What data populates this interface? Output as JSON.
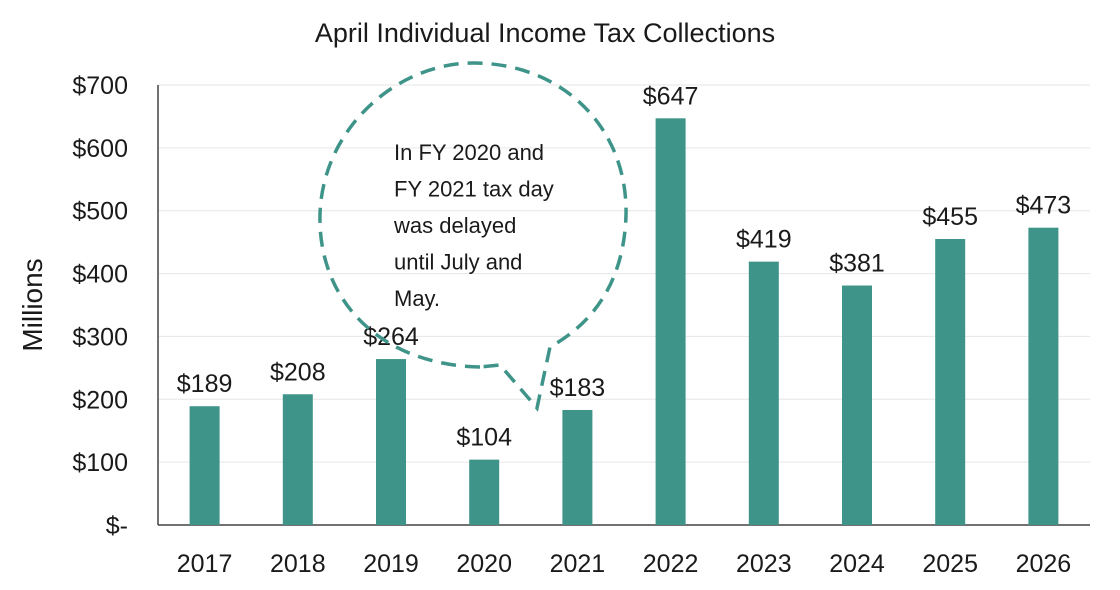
{
  "chart_data": {
    "type": "bar",
    "title": "April Individual Income Tax Collections",
    "ylabel": "Millions",
    "xlabel": "",
    "categories": [
      "2017",
      "2018",
      "2019",
      "2020",
      "2021",
      "2022",
      "2023",
      "2024",
      "2025",
      "2026"
    ],
    "values": [
      189,
      208,
      264,
      104,
      183,
      647,
      419,
      381,
      455,
      473
    ],
    "data_labels": [
      "$189",
      "$208",
      "$264",
      "$104",
      "$183",
      "$647",
      "$419",
      "$381",
      "$455",
      "$473"
    ],
    "ylim": [
      0,
      700
    ],
    "yticks": [
      0,
      100,
      200,
      300,
      400,
      500,
      600,
      700
    ],
    "ytick_labels": [
      "$-",
      "$100",
      "$200",
      "$300",
      "$400",
      "$500",
      "$600",
      "$700"
    ],
    "grid": true,
    "bar_color": "#3f9489",
    "annotation": {
      "lines": [
        "In FY 2020 and",
        "FY 2021 tax day",
        "was delayed",
        "until July and",
        "May."
      ],
      "color": "#3f9489"
    }
  }
}
